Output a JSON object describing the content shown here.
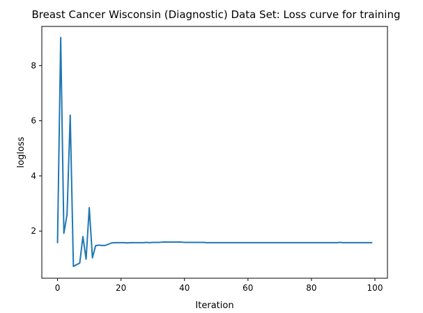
{
  "chart_data": {
    "type": "line",
    "title": "Breast Cancer Wisconsin (Diagnostic) Data Set: Loss curve for training",
    "xlabel": "Iteration",
    "ylabel": "logloss",
    "xlim": [
      -4.95,
      103.95
    ],
    "ylim": [
      0.29,
      9.42
    ],
    "xticks": [
      0,
      20,
      40,
      60,
      80,
      100
    ],
    "yticks": [
      2,
      4,
      6,
      8
    ],
    "grid": false,
    "legend": "none",
    "series": [
      {
        "color": "#1f77b4",
        "x": [
          0,
          1,
          2,
          3,
          4,
          5,
          6,
          7,
          8,
          9,
          10,
          11,
          12,
          13,
          14,
          15,
          16,
          17,
          18,
          19,
          20,
          21,
          22,
          23,
          24,
          25,
          26,
          27,
          28,
          29,
          30,
          31,
          32,
          33,
          34,
          35,
          36,
          37,
          38,
          39,
          40,
          41,
          42,
          43,
          44,
          45,
          46,
          47,
          48,
          49,
          50,
          51,
          52,
          53,
          54,
          55,
          56,
          57,
          58,
          59,
          60,
          61,
          62,
          63,
          64,
          65,
          66,
          67,
          68,
          69,
          70,
          71,
          72,
          73,
          74,
          75,
          76,
          77,
          78,
          79,
          80,
          81,
          82,
          83,
          84,
          85,
          86,
          87,
          88,
          89,
          90,
          91,
          92,
          93,
          94,
          95,
          96,
          97,
          98,
          99
        ],
        "y": [
          1.58,
          9.02,
          1.92,
          2.6,
          6.2,
          0.72,
          0.78,
          0.84,
          1.8,
          0.98,
          2.85,
          1.03,
          1.47,
          1.49,
          1.48,
          1.48,
          1.52,
          1.57,
          1.58,
          1.58,
          1.58,
          1.58,
          1.57,
          1.58,
          1.58,
          1.58,
          1.58,
          1.58,
          1.59,
          1.58,
          1.59,
          1.59,
          1.59,
          1.6,
          1.6,
          1.6,
          1.6,
          1.6,
          1.6,
          1.6,
          1.59,
          1.59,
          1.59,
          1.59,
          1.59,
          1.59,
          1.59,
          1.58,
          1.58,
          1.58,
          1.58,
          1.58,
          1.58,
          1.58,
          1.58,
          1.58,
          1.58,
          1.58,
          1.58,
          1.58,
          1.58,
          1.58,
          1.58,
          1.58,
          1.58,
          1.58,
          1.58,
          1.58,
          1.58,
          1.58,
          1.58,
          1.58,
          1.58,
          1.58,
          1.58,
          1.58,
          1.58,
          1.58,
          1.58,
          1.58,
          1.58,
          1.58,
          1.58,
          1.58,
          1.58,
          1.58,
          1.58,
          1.58,
          1.58,
          1.59,
          1.58,
          1.58,
          1.58,
          1.58,
          1.58,
          1.58,
          1.58,
          1.58,
          1.58,
          1.58
        ]
      }
    ]
  }
}
